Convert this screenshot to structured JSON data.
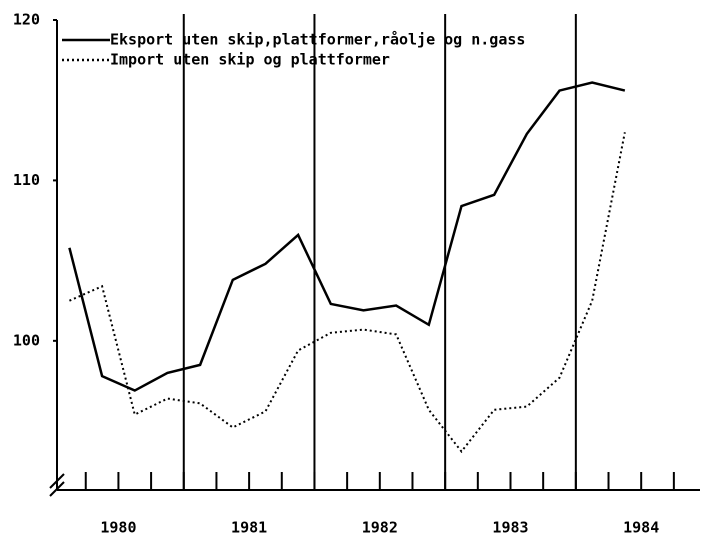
{
  "chart_data": {
    "type": "line",
    "x": [
      1980.125,
      1980.375,
      1980.625,
      1980.875,
      1981.125,
      1981.375,
      1981.625,
      1981.875,
      1982.125,
      1982.375,
      1982.625,
      1982.875,
      1983.125,
      1983.375,
      1983.625,
      1983.875,
      1984.125,
      1984.375
    ],
    "series": [
      {
        "name": "Eksport uten skip,plattformer,råolje og n.gass",
        "color": "#000000",
        "dash": "solid",
        "values": [
          105.8,
          97.8,
          96.9,
          98.0,
          98.5,
          103.8,
          104.8,
          106.6,
          102.3,
          101.9,
          102.2,
          101.0,
          108.4,
          109.1,
          112.9,
          115.6,
          116.1,
          115.6
        ]
      },
      {
        "name": "Import uten skip og plattformer",
        "color": "#000000",
        "dash": "dotted",
        "values": [
          102.5,
          103.4,
          95.4,
          96.4,
          96.1,
          94.6,
          95.6,
          99.4,
          100.5,
          100.7,
          100.4,
          95.7,
          93.1,
          95.7,
          95.9,
          97.7,
          102.5,
          113.0
        ]
      }
    ],
    "xlim": [
      1980.03,
      1984.95
    ],
    "xticks": [
      {
        "value": 1980.5,
        "label": "1980"
      },
      {
        "value": 1981.5,
        "label": "1981"
      },
      {
        "value": 1982.5,
        "label": "1982"
      },
      {
        "value": 1983.5,
        "label": "1983"
      },
      {
        "value": 1984.5,
        "label": "1984"
      }
    ],
    "minor_xticks": [
      1980.25,
      1980.75,
      1981,
      1981.25,
      1981.75,
      1982,
      1982.25,
      1982.75,
      1983,
      1983.25,
      1983.75,
      1984,
      1984.25,
      1984.75
    ],
    "vlines": [
      1981,
      1982,
      1983,
      1984
    ],
    "ylim": [
      90.7,
      120
    ],
    "yticks": [
      100,
      110,
      120
    ],
    "legend": "upper-left"
  }
}
